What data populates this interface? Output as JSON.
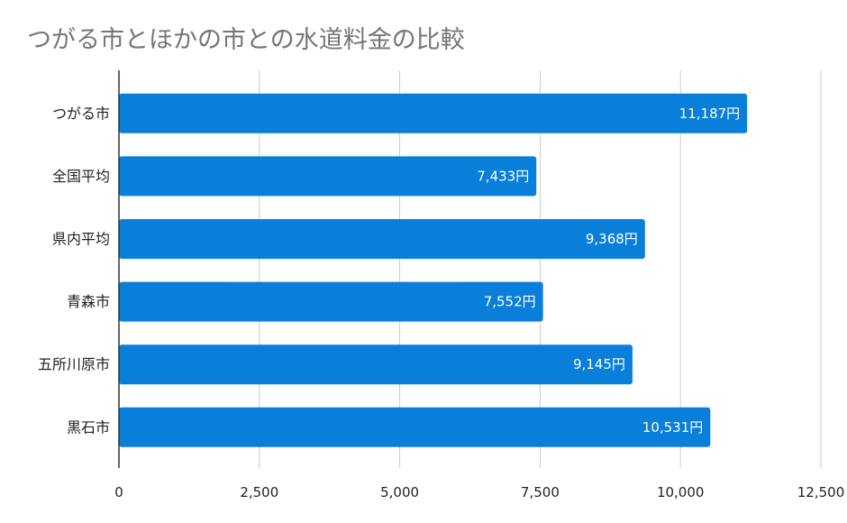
{
  "chart_data": {
    "type": "bar",
    "orientation": "horizontal",
    "title": "つがる市とほかの市との水道料金の比較",
    "categories": [
      "つがる市",
      "全国平均",
      "県内平均",
      "青森市",
      "五所川原市",
      "黒石市"
    ],
    "values": [
      11187,
      7433,
      9368,
      7552,
      9145,
      10531
    ],
    "data_labels": [
      "11,187円",
      "7,433円",
      "9,368円",
      "7,552円",
      "9,145円",
      "10,531円"
    ],
    "xticks": [
      0,
      2500,
      5000,
      7500,
      10000,
      12500
    ],
    "xtick_labels": [
      "0",
      "2,500",
      "5,000",
      "7,500",
      "10,000",
      "12,500"
    ],
    "xlim": [
      0,
      12500
    ],
    "grid": true,
    "legend": "none",
    "xlabel": "",
    "ylabel": ""
  },
  "colors": {
    "bar": "#0a7fd9",
    "grid": "#cccccc",
    "axis": "#333333",
    "title": "#757575"
  }
}
